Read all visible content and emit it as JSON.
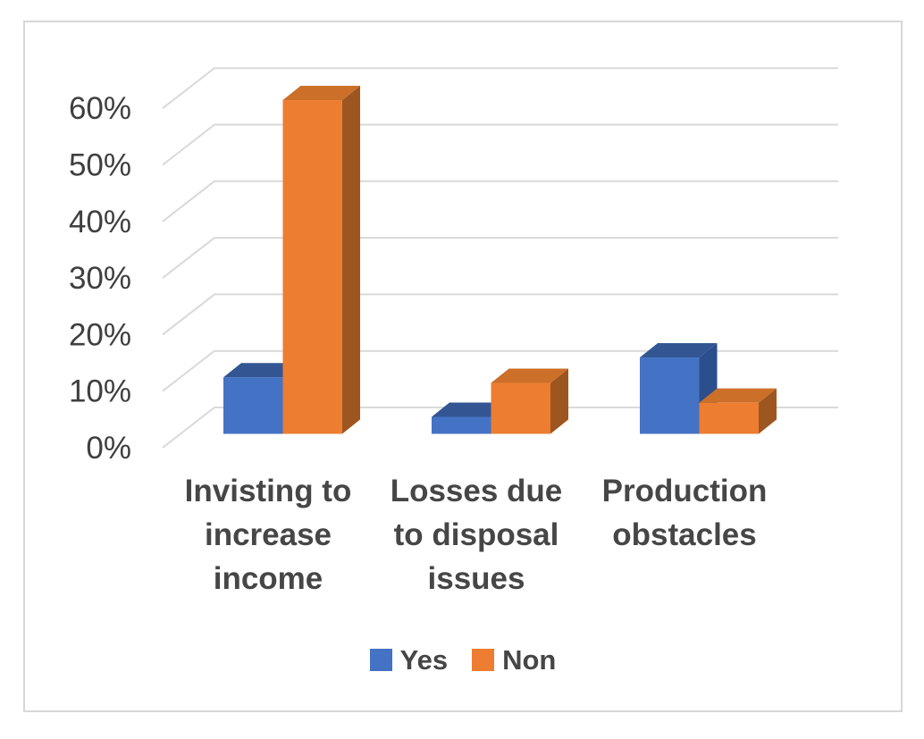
{
  "chart_data": {
    "type": "bar",
    "subtype": "3d-clustered-column",
    "title": "",
    "xlabel": "",
    "ylabel": "",
    "categories": [
      "Invisting to increase income",
      "Losses due to disposal issues",
      "Production obstacles"
    ],
    "category_label_lines": [
      [
        "Invisting to",
        "increase",
        "income"
      ],
      [
        "Losses due",
        "to disposal",
        "issues"
      ],
      [
        "Production",
        "obstacles"
      ]
    ],
    "series": [
      {
        "name": "Yes",
        "values": [
          10,
          3,
          13.5
        ],
        "color": "#4472C4",
        "color_top": "#335693",
        "color_side": "#2B4E8C"
      },
      {
        "name": "Non",
        "values": [
          59,
          9,
          5.5
        ],
        "color": "#ED7D31",
        "color_top": "#CC6F28",
        "color_side": "#9E5620"
      }
    ],
    "y_unit": "%",
    "y_tick_labels": [
      "0%",
      "10%",
      "20%",
      "30%",
      "40%",
      "50%",
      "60%"
    ],
    "y_tick_values": [
      0,
      10,
      20,
      30,
      40,
      50,
      60
    ],
    "ylim": [
      0,
      60
    ],
    "grid": true,
    "legend_position": "bottom",
    "colors": {
      "gridline": "#D9D9D9",
      "frame_border": "#D7D7D7",
      "text": "#464646",
      "tick_text": "#3F3F3F",
      "background": "#FFFFFF"
    }
  }
}
